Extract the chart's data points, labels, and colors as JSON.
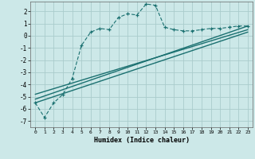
{
  "title": "",
  "xlabel": "Humidex (Indice chaleur)",
  "ylabel": "",
  "xlim": [
    -0.5,
    23.5
  ],
  "ylim": [
    -7.5,
    2.8
  ],
  "yticks": [
    -7,
    -6,
    -5,
    -4,
    -3,
    -2,
    -1,
    0,
    1,
    2
  ],
  "xticks": [
    0,
    1,
    2,
    3,
    4,
    5,
    6,
    7,
    8,
    9,
    10,
    11,
    12,
    13,
    14,
    15,
    16,
    17,
    18,
    19,
    20,
    21,
    22,
    23
  ],
  "xtick_labels": [
    "0",
    "1",
    "2",
    "3",
    "4",
    "5",
    "6",
    "7",
    "8",
    "9",
    "10",
    "11",
    "12",
    "13",
    "14",
    "15",
    "16",
    "17",
    "18",
    "19",
    "20",
    "21",
    "22",
    "23"
  ],
  "bg_color": "#cce8e8",
  "grid_color": "#aacccc",
  "line_color": "#1a7070",
  "main_x": [
    0,
    1,
    2,
    3,
    4,
    5,
    6,
    7,
    8,
    9,
    10,
    11,
    12,
    13,
    14,
    15,
    16,
    17,
    18,
    19,
    20,
    21,
    22,
    23
  ],
  "main_y": [
    -5.5,
    -6.7,
    -5.5,
    -4.8,
    -3.5,
    -0.8,
    0.3,
    0.6,
    0.5,
    1.5,
    1.8,
    1.7,
    2.6,
    2.5,
    0.7,
    0.5,
    0.4,
    0.4,
    0.5,
    0.6,
    0.6,
    0.7,
    0.8,
    0.8
  ],
  "line1_x": [
    0,
    23
  ],
  "line1_y": [
    -5.5,
    0.3
  ],
  "line2_x": [
    0,
    23
  ],
  "line2_y": [
    -5.2,
    0.8
  ],
  "line3_x": [
    0,
    23
  ],
  "line3_y": [
    -4.8,
    0.5
  ]
}
